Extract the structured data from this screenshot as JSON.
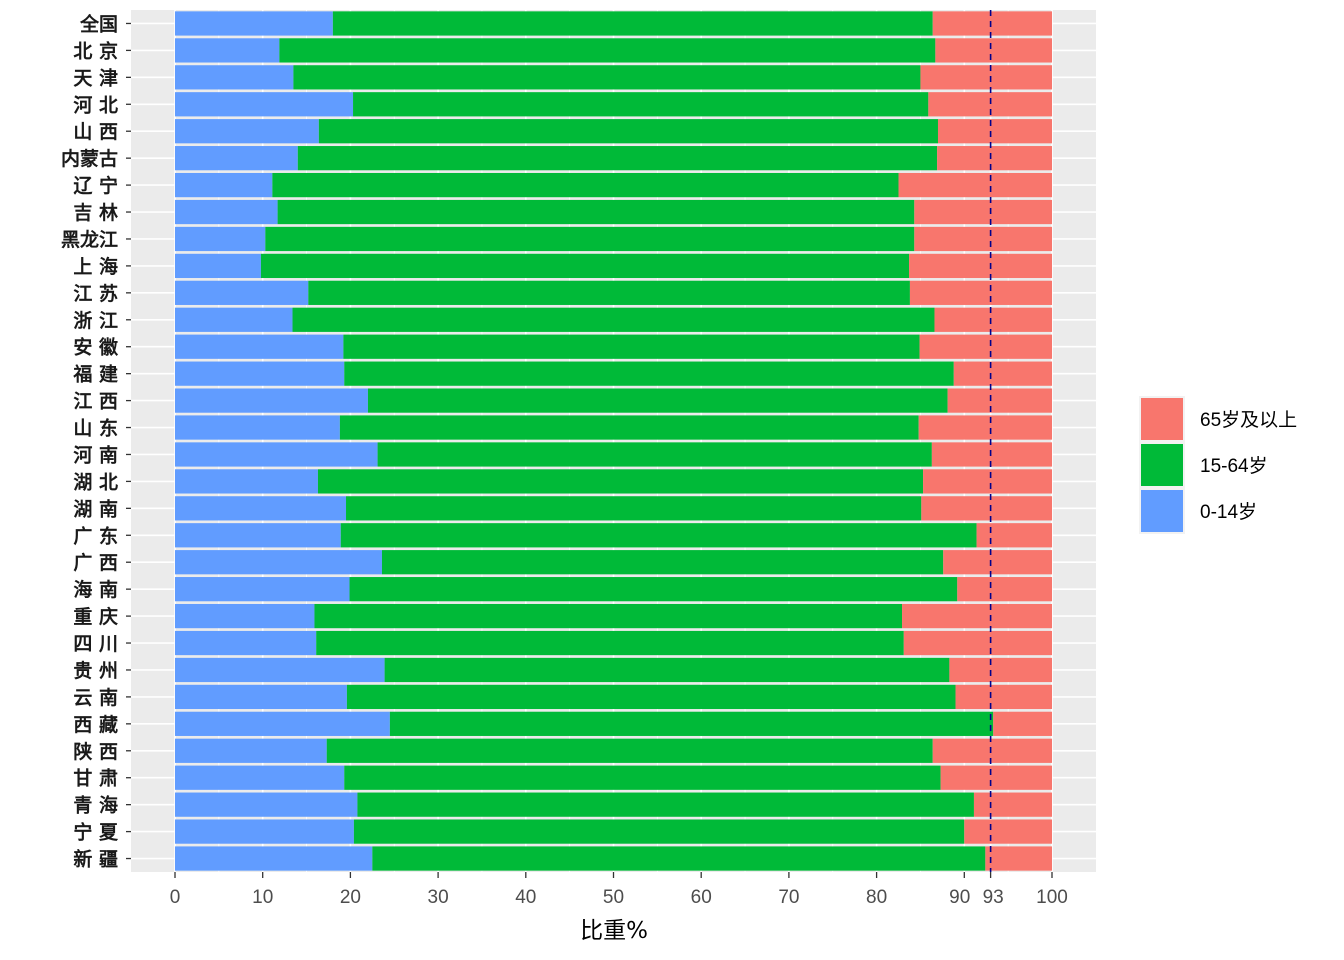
{
  "chart_data": {
    "type": "bar",
    "orientation": "horizontal",
    "stacked": true,
    "title": "",
    "xlabel": "比重%",
    "ylabel": "",
    "xlim": [
      0,
      100
    ],
    "x_ticks": [
      "0",
      "10",
      "20",
      "30",
      "40",
      "50",
      "60",
      "70",
      "80",
      "90",
      "93",
      "100"
    ],
    "x_tick_values": [
      0,
      10,
      20,
      30,
      40,
      50,
      60,
      70,
      80,
      90,
      93,
      100
    ],
    "reference_line": {
      "value": 93,
      "style": "dashed",
      "color": "#00008b"
    },
    "categories": [
      "全国",
      "北 京",
      "天 津",
      "河 北",
      "山 西",
      "内蒙古",
      "辽 宁",
      "吉 林",
      "黑龙江",
      "上 海",
      "江 苏",
      "浙 江",
      "安 徽",
      "福 建",
      "江 西",
      "山 东",
      "河 南",
      "湖 北",
      "湖 南",
      "广 东",
      "广 西",
      "海 南",
      "重 庆",
      "四 川",
      "贵 州",
      "云 南",
      "西 藏",
      "陕 西",
      "甘 肃",
      "青 海",
      "宁 夏",
      "新 疆"
    ],
    "series": [
      {
        "name": "0-14岁",
        "color": "#619CFF",
        "values": [
          18.0,
          11.9,
          13.5,
          20.3,
          16.4,
          14.0,
          11.1,
          11.7,
          10.3,
          9.8,
          15.2,
          13.4,
          19.2,
          19.3,
          22.0,
          18.8,
          23.1,
          16.3,
          19.5,
          18.9,
          23.6,
          19.9,
          15.9,
          16.1,
          23.9,
          19.6,
          24.5,
          17.3,
          19.3,
          20.8,
          20.4,
          22.5
        ]
      },
      {
        "name": "15-64岁",
        "color": "#00BA38",
        "values": [
          68.4,
          74.8,
          71.5,
          65.6,
          70.6,
          72.9,
          71.4,
          72.6,
          74.0,
          73.9,
          68.6,
          73.2,
          65.7,
          69.5,
          66.1,
          66.0,
          63.2,
          69.0,
          65.6,
          72.5,
          64.0,
          69.3,
          67.0,
          67.0,
          64.4,
          69.4,
          68.8,
          69.1,
          68.0,
          70.3,
          69.6,
          69.9
        ]
      },
      {
        "name": "65岁及以上",
        "color": "#F8766D",
        "values": [
          13.6,
          13.3,
          15.0,
          14.1,
          13.0,
          13.1,
          17.5,
          15.7,
          15.7,
          16.3,
          16.2,
          13.4,
          15.1,
          11.2,
          11.9,
          15.2,
          13.7,
          14.7,
          14.9,
          8.6,
          12.4,
          10.8,
          17.1,
          16.9,
          11.7,
          11.0,
          6.7,
          13.6,
          12.7,
          8.9,
          10.0,
          7.6
        ]
      }
    ],
    "legend": {
      "position": "right",
      "entries": [
        "65岁及以上",
        "15-64岁",
        "0-14岁"
      ]
    }
  }
}
